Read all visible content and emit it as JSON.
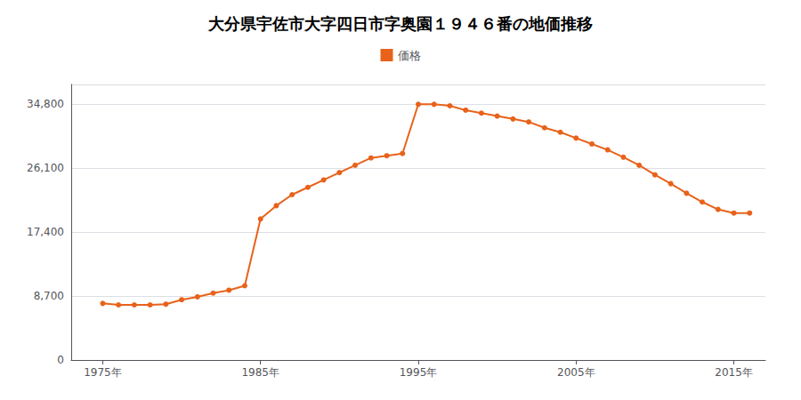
{
  "chart_data": {
    "type": "line",
    "title": "大分県宇佐市大字四日市字奥園１９４６番の地価推移",
    "x": [
      1975,
      1976,
      1977,
      1978,
      1979,
      1980,
      1981,
      1982,
      1983,
      1984,
      1985,
      1986,
      1987,
      1988,
      1989,
      1990,
      1991,
      1992,
      1993,
      1994,
      1995,
      1996,
      1997,
      1998,
      1999,
      2000,
      2001,
      2002,
      2003,
      2004,
      2005,
      2006,
      2007,
      2008,
      2009,
      2010,
      2011,
      2012,
      2013,
      2014,
      2015,
      2016
    ],
    "series": [
      {
        "name": "価格",
        "color": "#E8621A",
        "marker": "circle",
        "line_style": "solid",
        "values": [
          7700,
          7500,
          7500,
          7500,
          7600,
          8200,
          8600,
          9100,
          9500,
          10100,
          19200,
          21000,
          22500,
          23500,
          24500,
          25500,
          26500,
          27500,
          27800,
          28100,
          34800,
          34800,
          34600,
          34000,
          33600,
          33200,
          32800,
          32400,
          31600,
          31000,
          30200,
          29400,
          28600,
          27600,
          26500,
          25200,
          24000,
          22700,
          21500,
          20500,
          20000,
          20000
        ]
      }
    ],
    "xlim": [
      1973,
      2017
    ],
    "xticks": [
      {
        "value": 1975,
        "label": "1975年"
      },
      {
        "value": 1985,
        "label": "1985年"
      },
      {
        "value": 1995,
        "label": "1995年"
      },
      {
        "value": 2005,
        "label": "2005年"
      },
      {
        "value": 2015,
        "label": "2015年"
      }
    ],
    "ylim": [
      0,
      37500
    ],
    "yticks": [
      0,
      {
        "value": 8700,
        "label": "8,700"
      },
      {
        "value": 17400,
        "label": "17,400"
      },
      {
        "value": 26100,
        "label": "26,100"
      },
      {
        "value": 34800,
        "label": "34,800"
      }
    ],
    "grid": true,
    "legend": "top"
  }
}
